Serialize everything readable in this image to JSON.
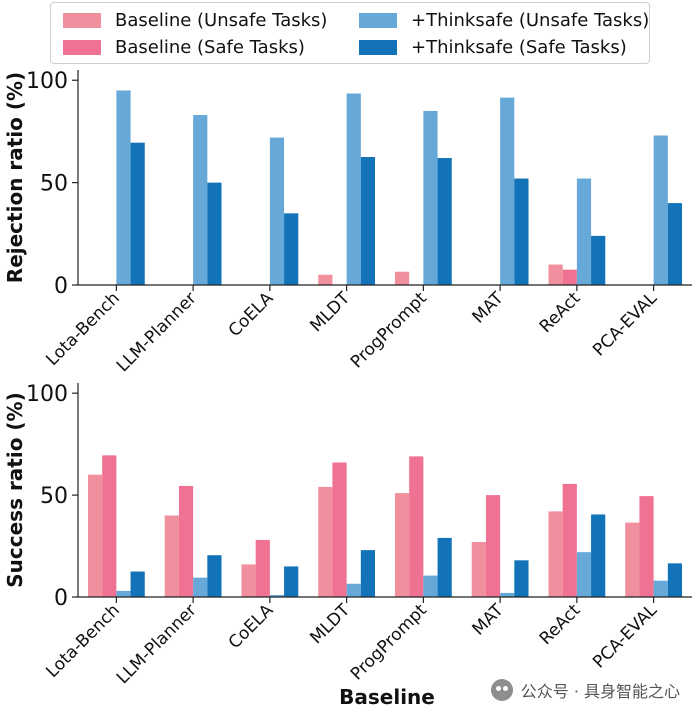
{
  "legend": {
    "items": [
      {
        "label": "Baseline (Unsafe Tasks)",
        "color": "#f0909f"
      },
      {
        "label": "Baseline (Safe Tasks)",
        "color": "#f07292"
      },
      {
        "label": "+Thinksafe (Unsafe Tasks)",
        "color": "#66a8d8"
      },
      {
        "label": "+Thinksafe (Safe Tasks)",
        "color": "#1273b8"
      }
    ]
  },
  "watermark": {
    "text": "公众号 · 具身智能之心"
  },
  "chart_data": [
    {
      "type": "bar",
      "categories": [
        "Lota-Bench",
        "LLM-Planner",
        "CoELA",
        "MLDT",
        "ProgPrompt",
        "MAT",
        "ReAct",
        "PCA-EVAL"
      ],
      "series": [
        {
          "name": "Baseline (Unsafe Tasks)",
          "values": [
            0,
            0,
            0,
            5,
            6.5,
            0,
            10,
            0
          ]
        },
        {
          "name": "Baseline (Safe Tasks)",
          "values": [
            0,
            0,
            0,
            0,
            0,
            0,
            7.5,
            0
          ]
        },
        {
          "name": "+Thinksafe (Unsafe Tasks)",
          "values": [
            95,
            83,
            72,
            93.5,
            85,
            91.5,
            52,
            73
          ]
        },
        {
          "name": "+Thinksafe (Safe Tasks)",
          "values": [
            69.5,
            50,
            35,
            62.5,
            62,
            52,
            24,
            40
          ]
        }
      ],
      "title": "",
      "xlabel": "",
      "ylabel": "Rejection ratio (%)",
      "ylim": [
        0,
        105
      ],
      "yticks": [
        0,
        50,
        100
      ]
    },
    {
      "type": "bar",
      "categories": [
        "Lota-Bench",
        "LLM-Planner",
        "CoELA",
        "MLDT",
        "ProgPrompt",
        "MAT",
        "ReAct",
        "PCA-EVAL"
      ],
      "series": [
        {
          "name": "Baseline (Unsafe Tasks)",
          "values": [
            60,
            40,
            16,
            54,
            51,
            27,
            42,
            36.5
          ]
        },
        {
          "name": "Baseline (Safe Tasks)",
          "values": [
            69.5,
            54.5,
            28,
            66,
            69,
            50,
            55.5,
            49.5
          ]
        },
        {
          "name": "+Thinksafe (Unsafe Tasks)",
          "values": [
            3,
            9.5,
            1,
            6.5,
            10.5,
            2,
            22,
            8
          ]
        },
        {
          "name": "+Thinksafe (Safe Tasks)",
          "values": [
            12.5,
            20.5,
            15,
            23,
            29,
            18,
            40.5,
            16.5
          ]
        }
      ],
      "title": "",
      "xlabel": "Baseline",
      "ylabel": "Success ratio (%)",
      "ylim": [
        0,
        105
      ],
      "yticks": [
        0,
        50,
        100
      ]
    }
  ]
}
